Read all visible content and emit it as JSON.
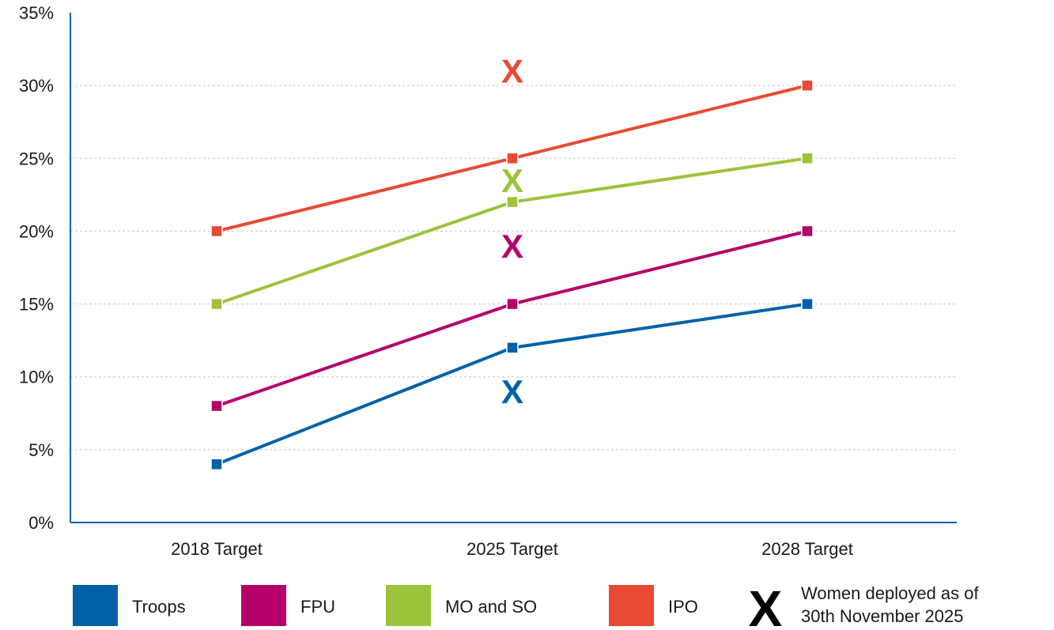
{
  "chart_data": {
    "type": "line",
    "categories": [
      "2018 Target",
      "2025 Target",
      "2028 Target"
    ],
    "ylim": [
      0,
      35
    ],
    "yticks": [
      "0%",
      "5%",
      "10%",
      "15%",
      "20%",
      "25%",
      "30%",
      "35%"
    ],
    "ytick_values": [
      0,
      5,
      10,
      15,
      20,
      25,
      30,
      35
    ],
    "grid": true,
    "legend_position": "bottom",
    "series": [
      {
        "name": "Troops",
        "color": "#0061a8",
        "values": [
          4,
          12,
          15
        ],
        "actual": 9
      },
      {
        "name": "FPU",
        "color": "#b5006a",
        "values": [
          8,
          15,
          20
        ],
        "actual": 19
      },
      {
        "name": "MO and SO",
        "color": "#9dc33b",
        "values": [
          15,
          22,
          25
        ],
        "actual": 23.5
      },
      {
        "name": "IPO",
        "color": "#e84a33",
        "values": [
          20,
          25,
          30
        ],
        "actual": 31
      }
    ],
    "actual_marker": {
      "symbol": "X",
      "category": "2025 Target",
      "legend_label_line1": "Women deployed as of",
      "legend_label_line2": "30th November 2025"
    }
  }
}
